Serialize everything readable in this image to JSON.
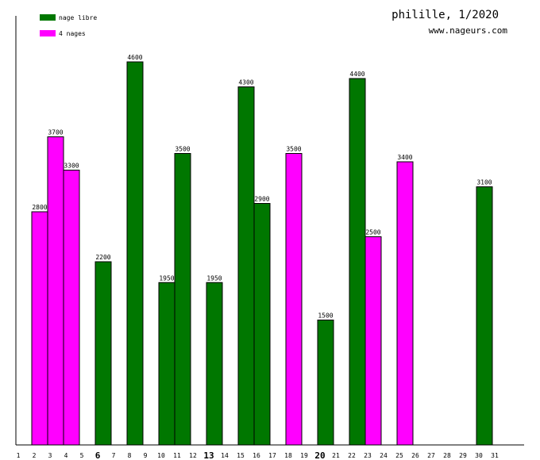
{
  "chart_data": {
    "type": "bar",
    "title": "philille, 1/2020",
    "subtitle": "www.nageurs.com",
    "legend_position": "top-left",
    "legend": [
      {
        "name": "nage libre",
        "color": "#007700"
      },
      {
        "name": "4 nages",
        "color": "#ff00ff"
      }
    ],
    "x_ticks": [
      "1",
      "2",
      "3",
      "4",
      "5",
      "6",
      "7",
      "8",
      "9",
      "10",
      "11",
      "12",
      "13",
      "14",
      "15",
      "16",
      "17",
      "18",
      "19",
      "20",
      "21",
      "22",
      "23",
      "24",
      "25",
      "26",
      "27",
      "28",
      "29",
      "30",
      "31"
    ],
    "highlighted_ticks": [
      "6",
      "13",
      "20"
    ],
    "bars": [
      {
        "day": 2,
        "value": 2800,
        "series": "4 nages"
      },
      {
        "day": 3,
        "value": 3700,
        "series": "4 nages"
      },
      {
        "day": 4,
        "value": 3300,
        "series": "4 nages"
      },
      {
        "day": 6,
        "value": 2200,
        "series": "nage libre"
      },
      {
        "day": 8,
        "value": 4600,
        "series": "nage libre"
      },
      {
        "day": 10,
        "value": 1950,
        "series": "nage libre"
      },
      {
        "day": 11,
        "value": 3500,
        "series": "nage libre"
      },
      {
        "day": 13,
        "value": 1950,
        "series": "nage libre"
      },
      {
        "day": 15,
        "value": 4300,
        "series": "nage libre"
      },
      {
        "day": 16,
        "value": 2900,
        "series": "nage libre"
      },
      {
        "day": 18,
        "value": 3500,
        "series": "4 nages"
      },
      {
        "day": 20,
        "value": 1500,
        "series": "nage libre"
      },
      {
        "day": 22,
        "value": 4400,
        "series": "nage libre"
      },
      {
        "day": 23,
        "value": 2500,
        "series": "4 nages"
      },
      {
        "day": 25,
        "value": 3400,
        "series": "4 nages"
      },
      {
        "day": 30,
        "value": 3100,
        "series": "nage libre"
      }
    ],
    "ylim": [
      0,
      4600
    ],
    "grid": false
  }
}
